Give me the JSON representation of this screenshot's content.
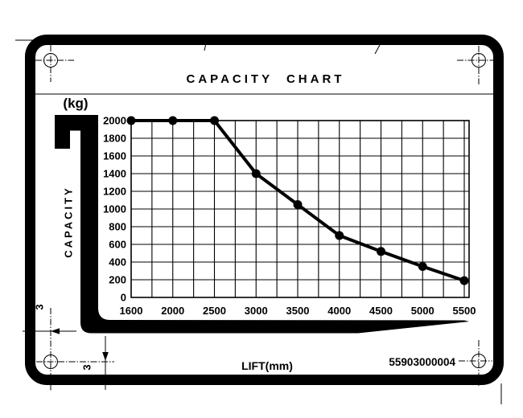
{
  "plate": {
    "title": "CAPACITY CHART",
    "part_number": "55903000004"
  },
  "chart_data": {
    "type": "line",
    "title": "CAPACITY CHART",
    "x": [
      1600,
      2000,
      2500,
      3000,
      3500,
      4000,
      4500,
      5000,
      5500
    ],
    "values": [
      2000,
      2000,
      2000,
      1400,
      1050,
      700,
      520,
      350,
      190
    ],
    "xlabel": "LIFT(mm)",
    "ylabel": "CAPACITY",
    "y_unit": "(kg)",
    "xlim": [
      1600,
      5500
    ],
    "ylim": [
      0,
      2000
    ],
    "y_tick_step": 200,
    "x_minor_gridlines": "midpoints",
    "grid": true,
    "legend": false,
    "marker": "filled-circle",
    "line_color": "#000000",
    "background": "#ffffff"
  },
  "annotations": {
    "left_dimension_label": "3",
    "bottom_dimension_label": "3"
  }
}
